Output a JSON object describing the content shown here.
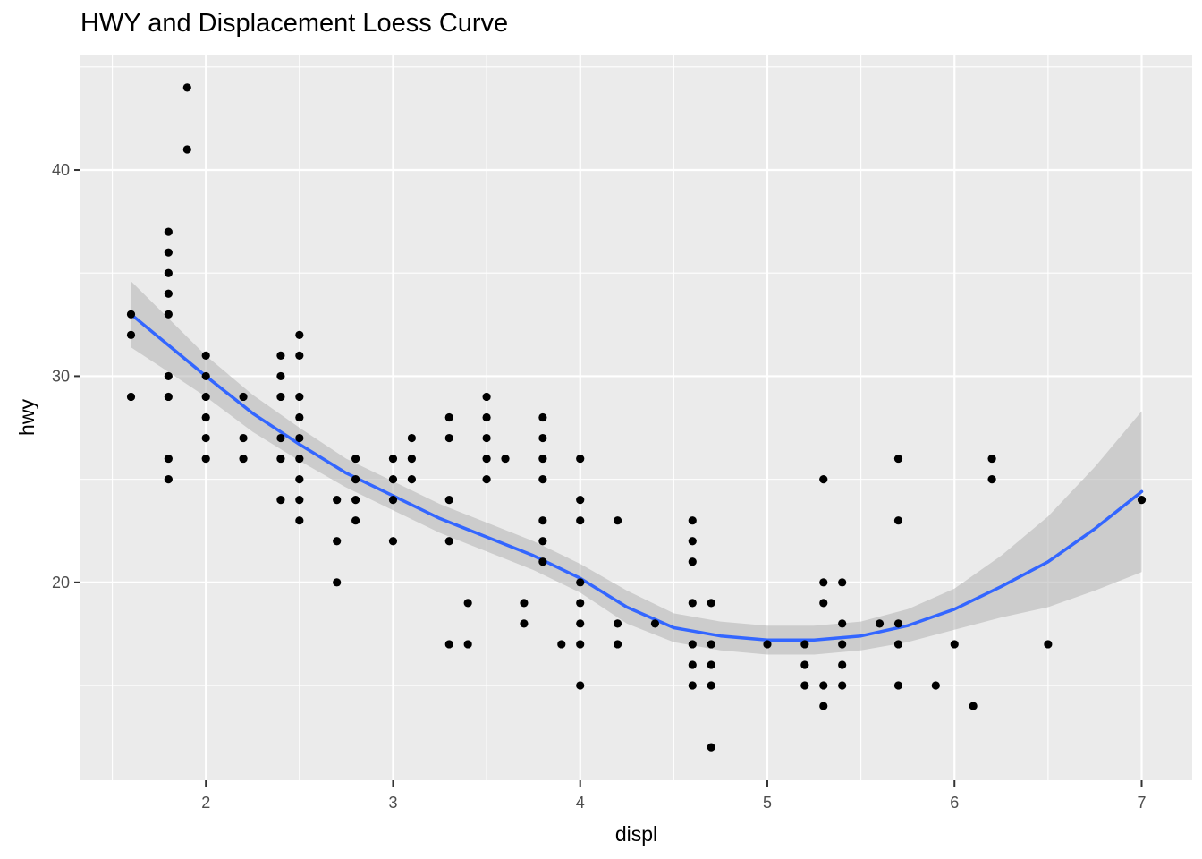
{
  "chart_data": {
    "type": "scatter",
    "title": "HWY and Displacement Loess Curve",
    "xlabel": "displ",
    "ylabel": "hwy",
    "xlim": [
      1.33,
      7.27
    ],
    "ylim": [
      10.4,
      45.6
    ],
    "x_ticks": [
      2,
      3,
      4,
      5,
      6,
      7
    ],
    "y_ticks": [
      20,
      30,
      40
    ],
    "grid": true,
    "background": "#ebebeb",
    "grid_color": "#ffffff",
    "point_color": "#000000",
    "curve_color": "#3366ff",
    "band_color": "#b3b3b3",
    "points": [
      [
        1.6,
        33
      ],
      [
        1.6,
        32
      ],
      [
        1.6,
        29
      ],
      [
        1.8,
        37
      ],
      [
        1.8,
        36
      ],
      [
        1.8,
        35
      ],
      [
        1.8,
        34
      ],
      [
        1.8,
        33
      ],
      [
        1.8,
        30
      ],
      [
        1.8,
        29
      ],
      [
        1.8,
        26
      ],
      [
        1.8,
        25
      ],
      [
        1.9,
        44
      ],
      [
        1.9,
        41
      ],
      [
        2.0,
        31
      ],
      [
        2.0,
        30
      ],
      [
        2.0,
        29
      ],
      [
        2.0,
        28
      ],
      [
        2.0,
        27
      ],
      [
        2.0,
        26
      ],
      [
        2.2,
        29
      ],
      [
        2.2,
        27
      ],
      [
        2.2,
        26
      ],
      [
        2.4,
        31
      ],
      [
        2.4,
        30
      ],
      [
        2.4,
        29
      ],
      [
        2.4,
        27
      ],
      [
        2.4,
        26
      ],
      [
        2.4,
        24
      ],
      [
        2.5,
        32
      ],
      [
        2.5,
        31
      ],
      [
        2.5,
        29
      ],
      [
        2.5,
        28
      ],
      [
        2.5,
        27
      ],
      [
        2.5,
        26
      ],
      [
        2.5,
        25
      ],
      [
        2.5,
        24
      ],
      [
        2.5,
        23
      ],
      [
        2.7,
        24
      ],
      [
        2.7,
        22
      ],
      [
        2.7,
        20
      ],
      [
        2.8,
        26
      ],
      [
        2.8,
        25
      ],
      [
        2.8,
        24
      ],
      [
        2.8,
        23
      ],
      [
        3.0,
        26
      ],
      [
        3.0,
        25
      ],
      [
        3.0,
        24
      ],
      [
        3.0,
        22
      ],
      [
        3.1,
        27
      ],
      [
        3.1,
        26
      ],
      [
        3.1,
        25
      ],
      [
        3.3,
        28
      ],
      [
        3.3,
        27
      ],
      [
        3.3,
        24
      ],
      [
        3.3,
        22
      ],
      [
        3.3,
        17
      ],
      [
        3.4,
        19
      ],
      [
        3.4,
        17
      ],
      [
        3.5,
        29
      ],
      [
        3.5,
        28
      ],
      [
        3.5,
        27
      ],
      [
        3.5,
        26
      ],
      [
        3.5,
        25
      ],
      [
        3.6,
        26
      ],
      [
        3.7,
        19
      ],
      [
        3.7,
        18
      ],
      [
        3.8,
        28
      ],
      [
        3.8,
        27
      ],
      [
        3.8,
        26
      ],
      [
        3.8,
        25
      ],
      [
        3.8,
        23
      ],
      [
        3.8,
        22
      ],
      [
        3.8,
        21
      ],
      [
        3.9,
        17
      ],
      [
        4.0,
        26
      ],
      [
        4.0,
        24
      ],
      [
        4.0,
        23
      ],
      [
        4.0,
        20
      ],
      [
        4.0,
        19
      ],
      [
        4.0,
        18
      ],
      [
        4.0,
        17
      ],
      [
        4.0,
        15
      ],
      [
        4.2,
        23
      ],
      [
        4.2,
        18
      ],
      [
        4.2,
        17
      ],
      [
        4.4,
        18
      ],
      [
        4.6,
        23
      ],
      [
        4.6,
        22
      ],
      [
        4.6,
        21
      ],
      [
        4.6,
        19
      ],
      [
        4.6,
        17
      ],
      [
        4.6,
        16
      ],
      [
        4.6,
        15
      ],
      [
        4.7,
        19
      ],
      [
        4.7,
        17
      ],
      [
        4.7,
        16
      ],
      [
        4.7,
        15
      ],
      [
        4.7,
        12
      ],
      [
        5.0,
        17
      ],
      [
        5.2,
        17
      ],
      [
        5.2,
        16
      ],
      [
        5.2,
        15
      ],
      [
        5.3,
        25
      ],
      [
        5.3,
        20
      ],
      [
        5.3,
        19
      ],
      [
        5.3,
        15
      ],
      [
        5.3,
        14
      ],
      [
        5.4,
        20
      ],
      [
        5.4,
        18
      ],
      [
        5.4,
        17
      ],
      [
        5.4,
        16
      ],
      [
        5.4,
        15
      ],
      [
        5.6,
        18
      ],
      [
        5.7,
        26
      ],
      [
        5.7,
        23
      ],
      [
        5.7,
        18
      ],
      [
        5.7,
        17
      ],
      [
        5.7,
        15
      ],
      [
        5.9,
        15
      ],
      [
        6.0,
        17
      ],
      [
        6.1,
        14
      ],
      [
        6.2,
        26
      ],
      [
        6.2,
        25
      ],
      [
        6.5,
        17
      ],
      [
        7.0,
        24
      ]
    ],
    "loess_curve": {
      "x": [
        1.6,
        1.8,
        2.0,
        2.25,
        2.5,
        2.75,
        3.0,
        3.25,
        3.5,
        3.75,
        4.0,
        4.25,
        4.5,
        4.75,
        5.0,
        5.25,
        5.5,
        5.75,
        6.0,
        6.25,
        6.5,
        6.75,
        7.0
      ],
      "y": [
        33.0,
        31.5,
        30.0,
        28.2,
        26.7,
        25.3,
        24.2,
        23.1,
        22.2,
        21.3,
        20.2,
        18.8,
        17.8,
        17.4,
        17.2,
        17.2,
        17.4,
        17.9,
        18.7,
        19.8,
        21.0,
        22.6,
        24.4
      ],
      "upper": [
        34.6,
        32.8,
        31.0,
        29.1,
        27.5,
        26.0,
        24.9,
        23.8,
        22.9,
        22.0,
        20.9,
        19.6,
        18.5,
        18.1,
        17.9,
        17.9,
        18.1,
        18.7,
        19.7,
        21.3,
        23.2,
        25.6,
        28.3
      ],
      "lower": [
        31.4,
        30.2,
        29.0,
        27.3,
        25.9,
        24.6,
        23.5,
        22.4,
        21.5,
        20.6,
        19.5,
        18.0,
        17.1,
        16.7,
        16.5,
        16.5,
        16.7,
        17.1,
        17.7,
        18.3,
        18.8,
        19.6,
        20.5
      ]
    }
  }
}
